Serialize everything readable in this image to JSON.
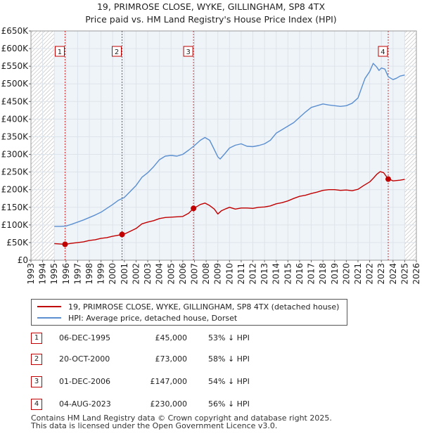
{
  "title": "19, PRIMROSE CLOSE, WYKE, GILLINGHAM, SP8 4TX",
  "subtitle": "Price paid vs. HM Land Registry's House Price Index (HPI)",
  "colors": {
    "property": "#c00000",
    "hpi": "#5b8fd0",
    "grid": "#dde3ea",
    "band": "#dce6f2",
    "hatch": "#b7b7b7",
    "axis": "#222222"
  },
  "chart_data": {
    "type": "line",
    "title": "19, PRIMROSE CLOSE, WYKE, GILLINGHAM, SP8 4TX",
    "xlim": [
      1993,
      2026
    ],
    "ylim": [
      0,
      650000
    ],
    "x_ticks": [
      "1993",
      "1994",
      "1995",
      "1996",
      "1997",
      "1998",
      "1999",
      "2000",
      "2001",
      "2002",
      "2003",
      "2004",
      "2005",
      "2006",
      "2007",
      "2008",
      "2009",
      "2010",
      "2011",
      "2012",
      "2013",
      "2014",
      "2015",
      "2016",
      "2017",
      "2018",
      "2019",
      "2020",
      "2021",
      "2022",
      "2023",
      "2024",
      "2025",
      "2026"
    ],
    "y_ticks": [
      {
        "value": 0,
        "label": "£0"
      },
      {
        "value": 50000,
        "label": "£50K"
      },
      {
        "value": 100000,
        "label": "£100K"
      },
      {
        "value": 150000,
        "label": "£150K"
      },
      {
        "value": 200000,
        "label": "£200K"
      },
      {
        "value": 250000,
        "label": "£250K"
      },
      {
        "value": 300000,
        "label": "£300K"
      },
      {
        "value": 350000,
        "label": "£350K"
      },
      {
        "value": 400000,
        "label": "£400K"
      },
      {
        "value": 450000,
        "label": "£450K"
      },
      {
        "value": 500000,
        "label": "£500K"
      },
      {
        "value": 550000,
        "label": "£550K"
      },
      {
        "value": 600000,
        "label": "£600K"
      },
      {
        "value": 650000,
        "label": "£650K"
      }
    ],
    "data_range": [
      1995.0,
      2025.0
    ],
    "series": [
      {
        "name": "19, PRIMROSE CLOSE, WYKE, GILLINGHAM, SP8 4TX (detached house)",
        "color": "#c00000",
        "x": [
          1995.0,
          1995.5,
          1995.92,
          1996.5,
          1997.0,
          1997.5,
          1998.0,
          1998.5,
          1999.0,
          1999.5,
          2000.0,
          2000.5,
          2000.8,
          2001.0,
          2001.5,
          2002.0,
          2002.5,
          2003.0,
          2003.5,
          2004.0,
          2004.5,
          2005.0,
          2005.5,
          2006.0,
          2006.5,
          2006.92,
          2007.2,
          2007.5,
          2007.9,
          2008.3,
          2008.7,
          2009.0,
          2009.3,
          2009.7,
          2010.0,
          2010.5,
          2011.0,
          2011.5,
          2012.0,
          2012.5,
          2013.0,
          2013.5,
          2014.0,
          2014.5,
          2015.0,
          2015.5,
          2016.0,
          2016.5,
          2017.0,
          2017.5,
          2018.0,
          2018.5,
          2019.0,
          2019.5,
          2020.0,
          2020.5,
          2021.0,
          2021.5,
          2022.0,
          2022.3,
          2022.6,
          2022.9,
          2023.2,
          2023.59,
          2023.8,
          2024.0,
          2024.3,
          2024.6,
          2025.0
        ],
        "values": [
          47000,
          46000,
          45000,
          48000,
          50000,
          52000,
          56000,
          58000,
          62000,
          64000,
          68000,
          71000,
          73000,
          74000,
          82000,
          90000,
          103000,
          108000,
          112000,
          118000,
          121000,
          122000,
          123000,
          124000,
          133000,
          147000,
          152000,
          158000,
          162000,
          155000,
          145000,
          131000,
          140000,
          146000,
          150000,
          145000,
          148000,
          148000,
          147000,
          150000,
          151000,
          154000,
          160000,
          163000,
          168000,
          175000,
          181000,
          184000,
          189000,
          193000,
          198000,
          200000,
          200000,
          198000,
          199000,
          197000,
          201000,
          212000,
          222000,
          232000,
          243000,
          251000,
          248000,
          230000,
          228000,
          225000,
          226000,
          227000,
          229000
        ]
      },
      {
        "name": "HPI: Average price, detached house, Dorset",
        "color": "#5b8fd0",
        "x": [
          1995.0,
          1995.5,
          1996.0,
          1996.5,
          1997.0,
          1997.5,
          1998.0,
          1998.5,
          1999.0,
          1999.5,
          2000.0,
          2000.5,
          2001.0,
          2001.5,
          2002.0,
          2002.5,
          2003.0,
          2003.5,
          2004.0,
          2004.5,
          2005.0,
          2005.5,
          2006.0,
          2006.5,
          2007.0,
          2007.5,
          2007.9,
          2008.3,
          2008.6,
          2009.0,
          2009.2,
          2009.6,
          2010.0,
          2010.5,
          2011.0,
          2011.5,
          2012.0,
          2012.5,
          2013.0,
          2013.5,
          2014.0,
          2014.5,
          2015.0,
          2015.5,
          2016.0,
          2016.5,
          2017.0,
          2017.5,
          2018.0,
          2018.5,
          2019.0,
          2019.5,
          2020.0,
          2020.5,
          2021.0,
          2021.3,
          2021.6,
          2022.0,
          2022.3,
          2022.6,
          2022.8,
          2023.0,
          2023.3,
          2023.6,
          2024.0,
          2024.3,
          2024.6,
          2025.0
        ],
        "values": [
          96000,
          96000,
          97000,
          102000,
          108000,
          114000,
          121000,
          128000,
          136000,
          147000,
          158000,
          170000,
          178000,
          195000,
          212000,
          235000,
          248000,
          265000,
          285000,
          295000,
          297000,
          295000,
          300000,
          312000,
          325000,
          340000,
          348000,
          340000,
          320000,
          293000,
          287000,
          302000,
          318000,
          326000,
          330000,
          323000,
          322000,
          325000,
          330000,
          340000,
          360000,
          370000,
          380000,
          390000,
          405000,
          420000,
          433000,
          438000,
          443000,
          440000,
          438000,
          436000,
          438000,
          445000,
          460000,
          488000,
          515000,
          535000,
          558000,
          548000,
          538000,
          545000,
          542000,
          520000,
          512000,
          516000,
          522000,
          525000
        ]
      }
    ],
    "sales": [
      {
        "label": "1",
        "x": 1995.92,
        "value": 45000
      },
      {
        "label": "2",
        "x": 2000.8,
        "value": 73000
      },
      {
        "label": "3",
        "x": 2006.92,
        "value": 147000
      },
      {
        "label": "4",
        "x": 2023.59,
        "value": 230000
      }
    ]
  },
  "legend": {
    "property_label": "19, PRIMROSE CLOSE, WYKE, GILLINGHAM, SP8 4TX (detached house)",
    "hpi_label": "HPI: Average price, detached house, Dorset"
  },
  "sales_table": [
    {
      "num": "1",
      "date": "06-DEC-1995",
      "price": "£45,000",
      "hpi": "53% ↓ HPI"
    },
    {
      "num": "2",
      "date": "20-OCT-2000",
      "price": "£73,000",
      "hpi": "58% ↓ HPI"
    },
    {
      "num": "3",
      "date": "01-DEC-2006",
      "price": "£147,000",
      "hpi": "54% ↓ HPI"
    },
    {
      "num": "4",
      "date": "04-AUG-2023",
      "price": "£230,000",
      "hpi": "56% ↓ HPI"
    }
  ],
  "footer": {
    "line1": "Contains HM Land Registry data © Crown copyright and database right 2025.",
    "line2": "This data is licensed under the Open Government Licence v3.0."
  }
}
